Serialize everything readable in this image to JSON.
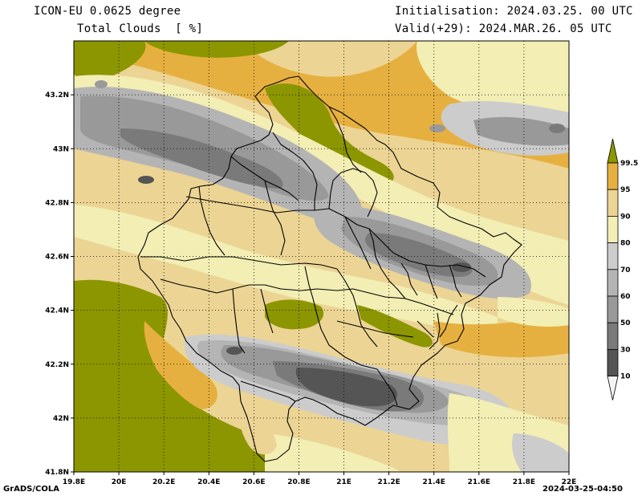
{
  "header": {
    "model": "ICON-EU 0.0625 degree",
    "variable": "Total Clouds  [ %]",
    "initialisation": "Initialisation: 2024.03.25. 00 UTC",
    "valid": "Valid(+29): 2024.MAR.26. 05 UTC"
  },
  "footer": {
    "software": "GrADS/COLA",
    "timestamp": "2024-03-25-04:50"
  },
  "map": {
    "lon_range": [
      19.8,
      22.0
    ],
    "lat_range": [
      41.8,
      43.4
    ],
    "x_ticks": [
      "19.8E",
      "20E",
      "20.2E",
      "20.4E",
      "20.6E",
      "20.8E",
      "21E",
      "21.2E",
      "21.4E",
      "21.6E",
      "21.8E",
      "22E"
    ],
    "y_ticks": [
      "43.2N",
      "43N",
      "42.8N",
      "42.6N",
      "42.4N",
      "42.2N",
      "42N",
      "41.8N"
    ],
    "gridlines": "dotted"
  },
  "legend": {
    "levels": [
      "10",
      "30",
      "50",
      "60",
      "70",
      "80",
      "90",
      "95",
      "99.5"
    ],
    "colors": {
      "lt10": "#f4f4f4",
      "10-30": "#555555",
      "30-50": "#7a7a7a",
      "50-60": "#999999",
      "60-70": "#b4b4b4",
      "70-80": "#cccccc",
      "80-90": "#f2eeb4",
      "90-95": "#ecd494",
      "95-99.5": "#e6b040",
      "gt99.5": "#8c9600"
    }
  }
}
